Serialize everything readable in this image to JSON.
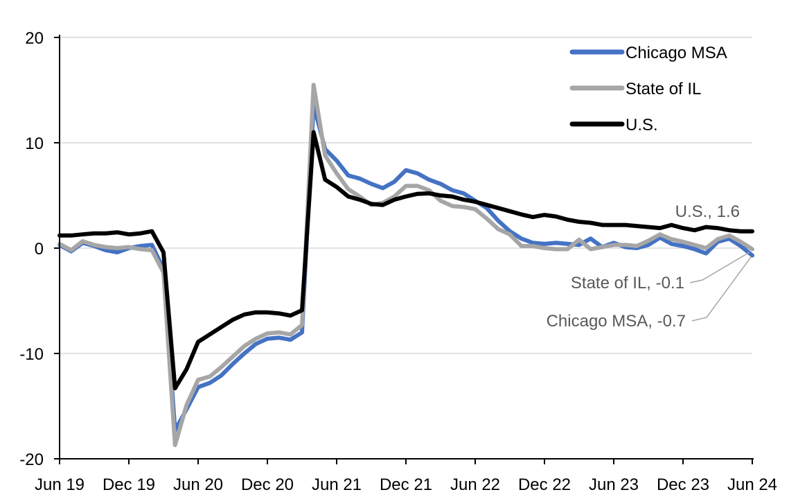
{
  "chart_data": {
    "type": "line",
    "title": "",
    "x_range": {
      "start": "Jun 2019",
      "end": "Jun 2024",
      "frequency": "monthly"
    },
    "x_tick_labels": [
      "Jun 19",
      "Dec 19",
      "Jun 20",
      "Dec 20",
      "Jun 21",
      "Dec 21",
      "Jun 22",
      "Dec 22",
      "Jun 23",
      "Dec 23",
      "Jun 24"
    ],
    "y_ticks": [
      20,
      10,
      0,
      -10,
      -20
    ],
    "ylim": [
      -20,
      20
    ],
    "grid": true,
    "legend_position": "top-right",
    "series": [
      {
        "name": "Chicago MSA",
        "color": "#4472C4",
        "last_value": -0.7,
        "values": [
          0.3,
          -0.3,
          0.5,
          0.2,
          -0.2,
          -0.4,
          0.0,
          0.2,
          0.3,
          -2.0,
          -17.3,
          -15.3,
          -13.2,
          -12.8,
          -12.1,
          -11.0,
          -10.0,
          -9.1,
          -8.6,
          -8.5,
          -8.7,
          -8.0,
          13.6,
          9.4,
          8.3,
          6.9,
          6.6,
          6.1,
          5.7,
          6.3,
          7.4,
          7.1,
          6.5,
          6.1,
          5.5,
          5.2,
          4.5,
          3.8,
          2.6,
          1.6,
          0.9,
          0.5,
          0.4,
          0.5,
          0.4,
          0.3,
          0.9,
          0.1,
          0.5,
          0.1,
          0.0,
          0.3,
          1.0,
          0.4,
          0.2,
          -0.1,
          -0.5,
          0.6,
          0.9,
          0.2,
          -0.7
        ]
      },
      {
        "name": "State of IL",
        "color": "#A6A6A6",
        "last_value": -0.1,
        "values": [
          0.4,
          -0.2,
          0.65,
          0.3,
          0.1,
          0.0,
          0.1,
          -0.1,
          -0.2,
          -2.3,
          -18.7,
          -14.9,
          -12.5,
          -12.2,
          -11.3,
          -10.3,
          -9.3,
          -8.6,
          -8.1,
          -8.0,
          -8.2,
          -7.3,
          15.5,
          8.8,
          7.1,
          5.6,
          4.9,
          4.1,
          4.3,
          4.9,
          5.9,
          5.9,
          5.5,
          4.5,
          4.0,
          3.9,
          3.7,
          2.8,
          1.8,
          1.3,
          0.2,
          0.2,
          0.0,
          -0.1,
          -0.1,
          0.8,
          -0.1,
          0.1,
          0.3,
          0.3,
          0.2,
          0.7,
          1.3,
          0.85,
          0.6,
          0.3,
          0.0,
          0.85,
          1.2,
          0.6,
          -0.1
        ]
      },
      {
        "name": "U.S.",
        "color": "#000000",
        "last_value": 1.6,
        "values": [
          1.2,
          1.2,
          1.3,
          1.4,
          1.4,
          1.5,
          1.3,
          1.4,
          1.6,
          -0.4,
          -13.3,
          -11.5,
          -8.9,
          -8.2,
          -7.5,
          -6.8,
          -6.3,
          -6.1,
          -6.1,
          -6.2,
          -6.4,
          -5.9,
          11.0,
          6.5,
          5.8,
          4.9,
          4.6,
          4.2,
          4.1,
          4.6,
          4.9,
          5.15,
          5.2,
          5.0,
          4.9,
          4.6,
          4.4,
          4.1,
          3.8,
          3.5,
          3.2,
          2.95,
          3.15,
          3.0,
          2.7,
          2.5,
          2.4,
          2.2,
          2.2,
          2.2,
          2.1,
          2.0,
          1.9,
          2.2,
          1.9,
          1.7,
          2.0,
          1.9,
          1.7,
          1.6,
          1.6
        ]
      }
    ],
    "annotations": [
      {
        "text": "U.S., 1.6"
      },
      {
        "text": "State of IL, -0.1"
      },
      {
        "text": "Chicago MSA, -0.7"
      }
    ],
    "annotation_color": "#595959",
    "gridline_color": "#D9D9D9",
    "axis_color": "#000000",
    "leader_line_color": "#A6A6A6"
  }
}
